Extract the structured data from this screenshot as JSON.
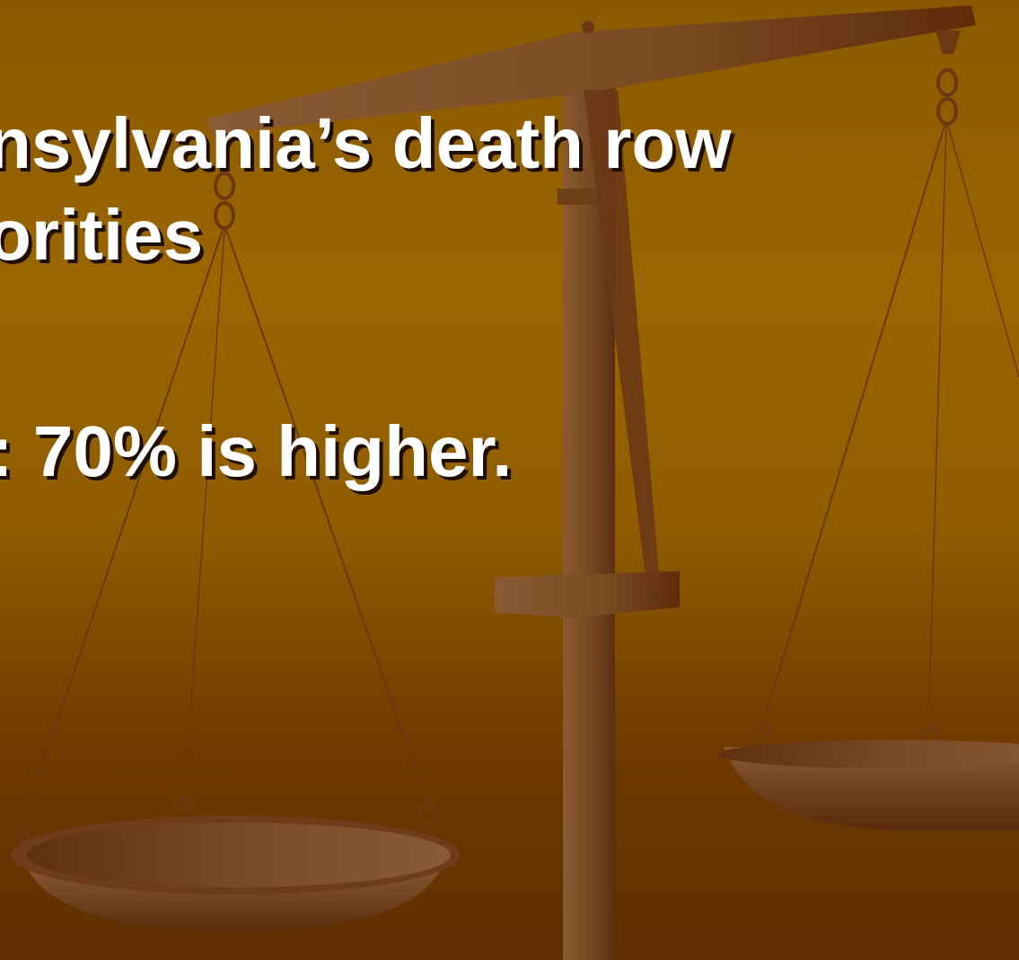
{
  "slide": {
    "bullet_1_line_1": "nsylvania’s death row",
    "bullet_1_line_2": "orities",
    "bullet_2": ": 70% is higher."
  },
  "colors": {
    "background_top": "#8a5a00",
    "background_bottom": "#5f2f00",
    "scale_wood": "#7a4a24",
    "text": "#ffffff",
    "text_shadow": "#1e0e00"
  }
}
